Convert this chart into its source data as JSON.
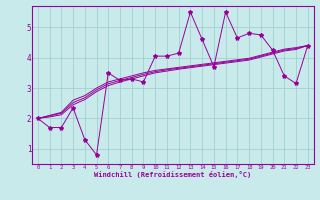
{
  "xlabel": "Windchill (Refroidissement éolien,°C)",
  "bg_color": "#c8eaea",
  "line_color": "#990099",
  "grid_color": "#99cccc",
  "x_ticks": [
    0,
    1,
    2,
    3,
    4,
    5,
    6,
    7,
    8,
    9,
    10,
    11,
    12,
    13,
    14,
    15,
    16,
    17,
    18,
    19,
    20,
    21,
    22,
    23
  ],
  "y_ticks": [
    1,
    2,
    3,
    4,
    5
  ],
  "ylim": [
    0.5,
    5.7
  ],
  "xlim": [
    -0.5,
    23.5
  ],
  "zigzag": [
    2.0,
    1.7,
    1.7,
    2.35,
    1.3,
    0.8,
    3.5,
    3.25,
    3.3,
    3.2,
    4.05,
    4.05,
    4.15,
    5.5,
    4.6,
    3.7,
    5.5,
    4.65,
    4.8,
    4.75,
    4.25,
    3.4,
    3.15,
    4.4
  ],
  "line1": [
    2.0,
    2.1,
    2.2,
    2.6,
    2.75,
    3.0,
    3.2,
    3.3,
    3.4,
    3.5,
    3.58,
    3.63,
    3.68,
    3.73,
    3.78,
    3.83,
    3.88,
    3.93,
    3.98,
    4.08,
    4.18,
    4.28,
    4.33,
    4.4
  ],
  "line2": [
    2.0,
    2.05,
    2.12,
    2.45,
    2.62,
    2.88,
    3.08,
    3.2,
    3.3,
    3.4,
    3.5,
    3.56,
    3.62,
    3.67,
    3.72,
    3.77,
    3.82,
    3.87,
    3.92,
    4.02,
    4.12,
    4.22,
    4.27,
    4.4
  ],
  "line3": [
    2.0,
    2.08,
    2.17,
    2.52,
    2.68,
    2.94,
    3.14,
    3.25,
    3.35,
    3.45,
    3.54,
    3.6,
    3.65,
    3.7,
    3.75,
    3.8,
    3.85,
    3.9,
    3.95,
    4.05,
    4.15,
    4.25,
    4.3,
    4.4
  ]
}
